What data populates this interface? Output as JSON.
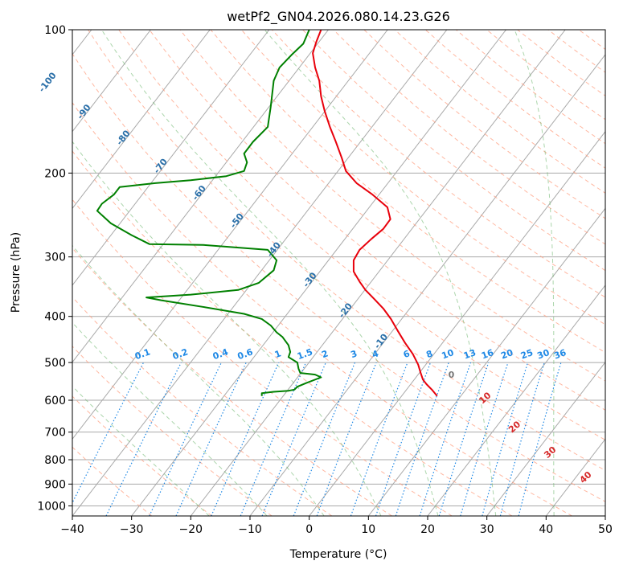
{
  "chart_data": {
    "type": "line",
    "title": "wetPf2_GN04.2026.080.14.23.G26",
    "xlabel": "Temperature (°C)",
    "ylabel": "Pressure (hPa)",
    "xlim": [
      -40,
      50
    ],
    "ylim": [
      1050,
      100
    ],
    "y_scale": "log",
    "grid": true,
    "x_ticks": [
      "−40",
      "−30",
      "−20",
      "−10",
      "0",
      "10",
      "20",
      "30",
      "40",
      "50"
    ],
    "y_ticks": [
      {
        "p": 100,
        "label": "100"
      },
      {
        "p": 200,
        "label": "200"
      },
      {
        "p": 300,
        "label": "300"
      },
      {
        "p": 400,
        "label": "400"
      },
      {
        "p": 500,
        "label": "500"
      },
      {
        "p": 600,
        "label": "600"
      },
      {
        "p": 700,
        "label": "700"
      },
      {
        "p": 800,
        "label": "800"
      },
      {
        "p": 900,
        "label": "900"
      },
      {
        "p": 1000,
        "label": "1000"
      }
    ],
    "colors": {
      "temperature": "#e8000b",
      "dewpoint": "#008000",
      "isotherm": "#a9a9a9",
      "dry_adiabat": "#ff9f80",
      "moist_adiabat": "#66b266",
      "mixing_ratio": "#1e88e5",
      "isotherm_label": "#2a6fa8",
      "dry_label": "#d62828",
      "lcl_marker": "#777777"
    },
    "isotherm_labels": [
      "-100",
      "-90",
      "-80",
      "-70",
      "-60",
      "-50",
      "-40",
      "-30",
      "-20",
      "-10"
    ],
    "mixing_ratio_labels": [
      "0.1",
      "0.2",
      "0.4",
      "0.6",
      "1",
      "1.5",
      "2",
      "3",
      "4",
      "6",
      "8",
      "10",
      "13",
      "16",
      "20",
      "25",
      "30",
      "36"
    ],
    "dry_adiabat_labels": [
      "10",
      "20",
      "30",
      "40"
    ],
    "lcl_label": "0",
    "series": [
      {
        "key": "temperature",
        "points": [
          [
            21.6,
            588
          ],
          [
            20.7,
            570
          ],
          [
            19.8,
            555
          ],
          [
            19.2,
            543
          ],
          [
            18.8,
            525
          ],
          [
            18.4,
            505
          ],
          [
            17.5,
            480
          ],
          [
            16.2,
            455
          ],
          [
            15.0,
            430
          ],
          [
            13.8,
            405
          ],
          [
            12.5,
            385
          ],
          [
            11.0,
            368
          ],
          [
            9.5,
            352
          ],
          [
            8.5,
            338
          ],
          [
            7.5,
            322
          ],
          [
            7.5,
            305
          ],
          [
            8.5,
            290
          ],
          [
            10.5,
            275
          ],
          [
            12.5,
            262
          ],
          [
            13.7,
            250
          ],
          [
            13.2,
            236
          ],
          [
            10.7,
            222
          ],
          [
            8.0,
            210
          ],
          [
            6.2,
            198
          ],
          [
            5.5,
            186
          ],
          [
            4.5,
            172
          ],
          [
            3.5,
            160
          ],
          [
            2.6,
            148
          ],
          [
            2.0,
            138
          ],
          [
            1.7,
            128
          ],
          [
            1.0,
            120
          ],
          [
            0.6,
            112
          ],
          [
            1.2,
            106
          ],
          [
            2.0,
            100
          ]
        ]
      },
      {
        "key": "dewpoint",
        "points": [
          [
            -8.0,
            588
          ],
          [
            -8.0,
            580
          ],
          [
            -6.0,
            576
          ],
          [
            -3.5,
            573
          ],
          [
            -2.5,
            570
          ],
          [
            -2.0,
            562
          ],
          [
            -0.5,
            552
          ],
          [
            2.0,
            537
          ],
          [
            1.0,
            530
          ],
          [
            -1.5,
            526
          ],
          [
            -1.8,
            515
          ],
          [
            -2.0,
            500
          ],
          [
            -3.5,
            487
          ],
          [
            -3.2,
            475
          ],
          [
            -3.5,
            460
          ],
          [
            -4.5,
            442
          ],
          [
            -5.5,
            432
          ],
          [
            -6.5,
            418
          ],
          [
            -8.0,
            405
          ],
          [
            -11.0,
            395
          ],
          [
            -18.0,
            382
          ],
          [
            -25.0,
            370
          ],
          [
            -27.5,
            365
          ],
          [
            -20.0,
            360
          ],
          [
            -12.0,
            352
          ],
          [
            -8.5,
            340
          ],
          [
            -6.0,
            320
          ],
          [
            -5.5,
            305
          ],
          [
            -7.0,
            290
          ],
          [
            -18.0,
            283
          ],
          [
            -27.0,
            282
          ],
          [
            -30.0,
            270
          ],
          [
            -33.5,
            255
          ],
          [
            -35.8,
            240
          ],
          [
            -35.0,
            232
          ],
          [
            -33.0,
            222
          ],
          [
            -32.0,
            214
          ],
          [
            -26.0,
            210
          ],
          [
            -20.0,
            207
          ],
          [
            -14.0,
            203
          ],
          [
            -11.0,
            198
          ],
          [
            -10.5,
            190
          ],
          [
            -11.0,
            182
          ],
          [
            -9.5,
            172
          ],
          [
            -7.0,
            160
          ],
          [
            -6.5,
            145
          ],
          [
            -6.0,
            128
          ],
          [
            -5.0,
            120
          ],
          [
            -3.0,
            113
          ],
          [
            -1.0,
            107
          ],
          [
            0.0,
            100
          ]
        ]
      }
    ]
  }
}
